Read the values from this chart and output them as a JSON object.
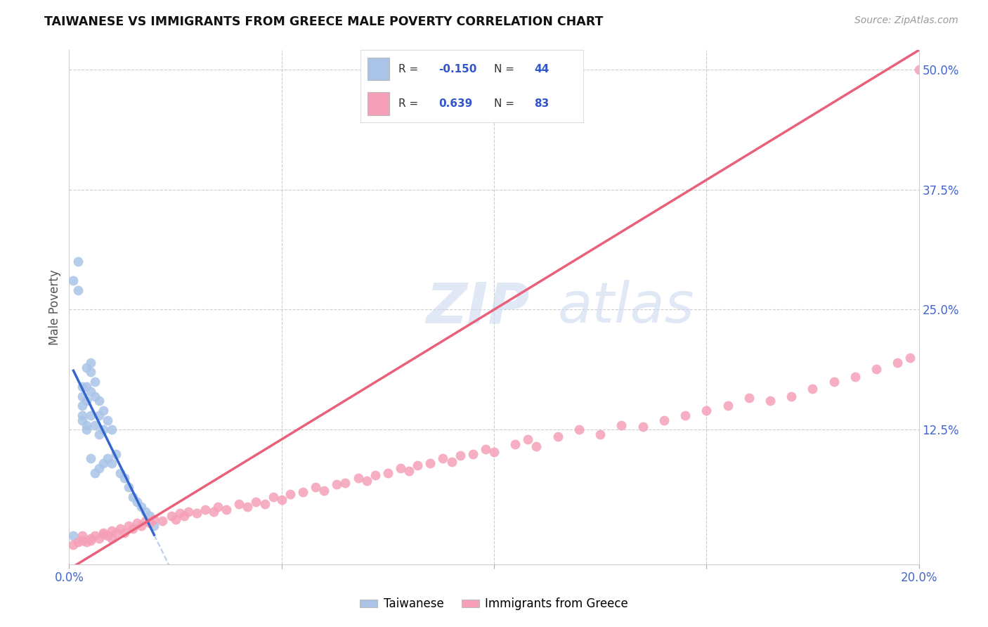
{
  "title": "TAIWANESE VS IMMIGRANTS FROM GREECE MALE POVERTY CORRELATION CHART",
  "source": "Source: ZipAtlas.com",
  "ylabel": "Male Poverty",
  "xlim": [
    0.0,
    0.2
  ],
  "ylim": [
    -0.015,
    0.52
  ],
  "taiwan_R": -0.15,
  "taiwan_N": 44,
  "greece_R": 0.639,
  "greece_N": 83,
  "taiwan_color": "#aac4e8",
  "greece_color": "#f5a0b8",
  "taiwan_line_color": "#3366cc",
  "greece_line_color": "#e8607a",
  "taiwan_dash_color": "#99b8e0",
  "watermark_zip": "ZIP",
  "watermark_atlas": "atlas",
  "legend_taiwan": "Taiwanese",
  "legend_greece": "Immigrants from Greece",
  "taiwan_scatter_x": [
    0.001,
    0.002,
    0.002,
    0.003,
    0.003,
    0.003,
    0.003,
    0.003,
    0.004,
    0.004,
    0.004,
    0.004,
    0.004,
    0.005,
    0.005,
    0.005,
    0.005,
    0.005,
    0.006,
    0.006,
    0.006,
    0.006,
    0.007,
    0.007,
    0.007,
    0.007,
    0.008,
    0.008,
    0.008,
    0.009,
    0.009,
    0.01,
    0.01,
    0.011,
    0.012,
    0.013,
    0.014,
    0.015,
    0.016,
    0.017,
    0.018,
    0.019,
    0.02,
    0.001
  ],
  "taiwan_scatter_y": [
    0.28,
    0.3,
    0.27,
    0.17,
    0.16,
    0.15,
    0.14,
    0.135,
    0.19,
    0.17,
    0.155,
    0.13,
    0.125,
    0.195,
    0.185,
    0.165,
    0.14,
    0.095,
    0.175,
    0.16,
    0.13,
    0.08,
    0.155,
    0.14,
    0.12,
    0.085,
    0.145,
    0.125,
    0.09,
    0.135,
    0.095,
    0.125,
    0.09,
    0.1,
    0.08,
    0.075,
    0.065,
    0.055,
    0.05,
    0.045,
    0.04,
    0.035,
    0.025,
    0.015
  ],
  "greece_scatter_x": [
    0.001,
    0.002,
    0.003,
    0.003,
    0.004,
    0.005,
    0.005,
    0.006,
    0.007,
    0.008,
    0.008,
    0.009,
    0.01,
    0.01,
    0.011,
    0.012,
    0.013,
    0.014,
    0.015,
    0.016,
    0.017,
    0.018,
    0.019,
    0.02,
    0.022,
    0.024,
    0.025,
    0.026,
    0.027,
    0.028,
    0.03,
    0.032,
    0.034,
    0.035,
    0.037,
    0.04,
    0.042,
    0.044,
    0.046,
    0.048,
    0.05,
    0.052,
    0.055,
    0.058,
    0.06,
    0.063,
    0.065,
    0.068,
    0.07,
    0.072,
    0.075,
    0.078,
    0.08,
    0.082,
    0.085,
    0.088,
    0.09,
    0.092,
    0.095,
    0.098,
    0.1,
    0.105,
    0.108,
    0.11,
    0.115,
    0.12,
    0.125,
    0.13,
    0.135,
    0.14,
    0.145,
    0.15,
    0.155,
    0.16,
    0.165,
    0.17,
    0.175,
    0.18,
    0.185,
    0.19,
    0.195,
    0.198,
    0.2
  ],
  "greece_scatter_y": [
    0.005,
    0.008,
    0.01,
    0.015,
    0.008,
    0.012,
    0.01,
    0.015,
    0.012,
    0.016,
    0.018,
    0.015,
    0.02,
    0.012,
    0.018,
    0.022,
    0.018,
    0.025,
    0.022,
    0.028,
    0.025,
    0.03,
    0.028,
    0.032,
    0.03,
    0.035,
    0.032,
    0.038,
    0.035,
    0.04,
    0.038,
    0.042,
    0.04,
    0.045,
    0.042,
    0.048,
    0.045,
    0.05,
    0.048,
    0.055,
    0.052,
    0.058,
    0.06,
    0.065,
    0.062,
    0.068,
    0.07,
    0.075,
    0.072,
    0.078,
    0.08,
    0.085,
    0.082,
    0.088,
    0.09,
    0.095,
    0.092,
    0.098,
    0.1,
    0.105,
    0.102,
    0.11,
    0.115,
    0.108,
    0.118,
    0.125,
    0.12,
    0.13,
    0.128,
    0.135,
    0.14,
    0.145,
    0.15,
    0.158,
    0.155,
    0.16,
    0.168,
    0.175,
    0.18,
    0.188,
    0.195,
    0.2,
    0.5
  ]
}
